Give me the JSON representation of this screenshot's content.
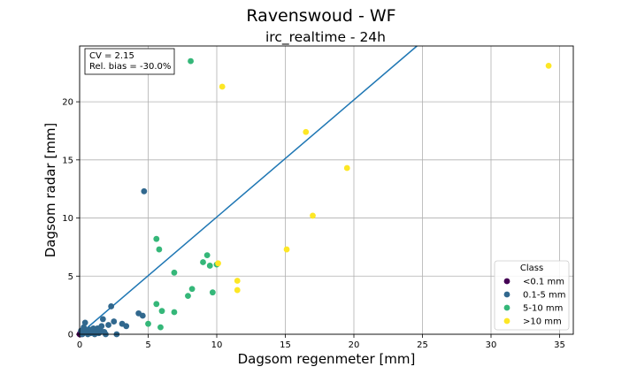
{
  "chart_data": {
    "type": "scatter",
    "title": "Ravenswoud - WF",
    "subtitle": "irc_realtime - 24h",
    "xlabel": "Dagsom regenmeter [mm]",
    "ylabel": "Dagsom radar [mm]",
    "xlim": [
      0,
      36
    ],
    "ylim": [
      0,
      24.8
    ],
    "xticks": [
      0,
      5,
      10,
      15,
      20,
      25,
      30,
      35
    ],
    "yticks": [
      0,
      5,
      10,
      15,
      20
    ],
    "grid": true,
    "reference_line": {
      "x": [
        0,
        24.6
      ],
      "y": [
        0,
        24.8
      ]
    },
    "stats": [
      "CV = 2.15",
      "Rel. bias = -30.0%"
    ],
    "legend": {
      "title": "Class",
      "position": "bottom-right"
    },
    "series": [
      {
        "name": "<0.1 mm",
        "color": "#440154",
        "points": [
          [
            0.0,
            0.0
          ],
          [
            0.05,
            0.1
          ],
          [
            0.08,
            0.0
          ]
        ]
      },
      {
        "name": "0.1-5 mm",
        "color": "#31688e",
        "points": [
          [
            0.1,
            0.3
          ],
          [
            0.2,
            0.0
          ],
          [
            0.3,
            0.6
          ],
          [
            0.4,
            1.0
          ],
          [
            0.5,
            0.2
          ],
          [
            0.6,
            0.0
          ],
          [
            0.7,
            0.4
          ],
          [
            0.8,
            0.1
          ],
          [
            0.9,
            0.3
          ],
          [
            1.0,
            0.5
          ],
          [
            1.1,
            0.0
          ],
          [
            1.2,
            0.2
          ],
          [
            1.3,
            0.5
          ],
          [
            1.4,
            0.1
          ],
          [
            1.5,
            0.4
          ],
          [
            1.6,
            0.7
          ],
          [
            1.7,
            1.3
          ],
          [
            1.8,
            0.2
          ],
          [
            1.9,
            0.0
          ],
          [
            2.1,
            0.8
          ],
          [
            2.3,
            2.4
          ],
          [
            2.5,
            1.1
          ],
          [
            2.7,
            0.0
          ],
          [
            3.1,
            0.9
          ],
          [
            3.4,
            0.7
          ],
          [
            4.3,
            1.8
          ],
          [
            4.6,
            1.6
          ],
          [
            4.7,
            12.3
          ]
        ]
      },
      {
        "name": "5-10 mm",
        "color": "#35b779",
        "points": [
          [
            5.0,
            0.9
          ],
          [
            5.6,
            2.6
          ],
          [
            5.6,
            8.2
          ],
          [
            5.8,
            7.3
          ],
          [
            5.9,
            0.6
          ],
          [
            6.0,
            2.0
          ],
          [
            6.9,
            5.3
          ],
          [
            6.9,
            1.9
          ],
          [
            7.9,
            3.3
          ],
          [
            8.1,
            23.5
          ],
          [
            8.2,
            3.9
          ],
          [
            9.0,
            6.2
          ],
          [
            9.3,
            6.8
          ],
          [
            9.5,
            5.9
          ],
          [
            9.7,
            3.6
          ],
          [
            10.0,
            6.0
          ]
        ]
      },
      {
        "name": ">10 mm",
        "color": "#fde725",
        "points": [
          [
            10.1,
            6.1
          ],
          [
            10.4,
            21.3
          ],
          [
            11.5,
            4.6
          ],
          [
            11.5,
            3.8
          ],
          [
            15.1,
            7.3
          ],
          [
            16.5,
            17.4
          ],
          [
            17.0,
            10.2
          ],
          [
            19.5,
            14.3
          ],
          [
            34.2,
            23.1
          ]
        ]
      }
    ]
  }
}
